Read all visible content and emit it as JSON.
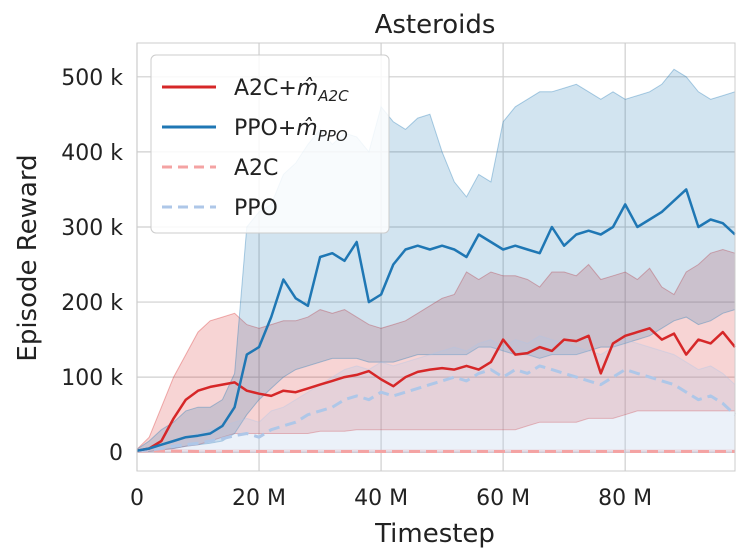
{
  "chart_data": {
    "type": "line",
    "title": "Asteroids",
    "xlabel": "Timestep",
    "ylabel": "Episode Reward",
    "xlim": [
      0,
      98
    ],
    "ylim": [
      -25,
      545
    ],
    "x_unit": "M",
    "y_unit": "k",
    "x_ticks": [
      0,
      20,
      40,
      60,
      80
    ],
    "x_tick_labels": [
      "0",
      "20 M",
      "40 M",
      "60 M",
      "80 M"
    ],
    "y_ticks": [
      0,
      100,
      200,
      300,
      400,
      500
    ],
    "y_tick_labels": [
      "0",
      "100 k",
      "200 k",
      "300 k",
      "400 k",
      "500 k"
    ],
    "grid": true,
    "legend_position": "top-left",
    "legend": [
      {
        "base": "A2C+",
        "symbol": "m̂",
        "sub": "A2C"
      },
      {
        "base": "PPO+",
        "symbol": "m̂",
        "sub": "PPO"
      },
      {
        "base": "A2C",
        "symbol": "",
        "sub": ""
      },
      {
        "base": "PPO",
        "symbol": "",
        "sub": ""
      }
    ],
    "series": [
      {
        "color": "#d62728",
        "dashed": false,
        "band_color": "#d62728",
        "band_opacity": 0.2,
        "x": [
          0,
          2,
          4,
          6,
          8,
          10,
          12,
          14,
          16,
          18,
          20,
          22,
          24,
          26,
          28,
          30,
          32,
          34,
          36,
          38,
          40,
          42,
          44,
          46,
          48,
          50,
          52,
          54,
          56,
          58,
          60,
          62,
          64,
          66,
          68,
          70,
          72,
          74,
          76,
          78,
          80,
          82,
          84,
          86,
          88,
          90,
          92,
          94,
          96,
          98
        ],
        "y": [
          2,
          5,
          15,
          45,
          70,
          82,
          87,
          90,
          93,
          82,
          78,
          75,
          82,
          80,
          85,
          90,
          95,
          100,
          103,
          108,
          97,
          88,
          100,
          107,
          110,
          112,
          110,
          115,
          110,
          120,
          150,
          130,
          132,
          140,
          135,
          150,
          148,
          155,
          105,
          145,
          155,
          160,
          165,
          150,
          158,
          130,
          150,
          145,
          160,
          140
        ],
        "lower": [
          0,
          1,
          3,
          5,
          8,
          10,
          15,
          20,
          25,
          25,
          25,
          25,
          25,
          25,
          25,
          28,
          28,
          28,
          30,
          30,
          30,
          30,
          30,
          30,
          30,
          30,
          30,
          30,
          30,
          30,
          30,
          30,
          35,
          40,
          40,
          40,
          40,
          45,
          45,
          45,
          50,
          55,
          55,
          55,
          55,
          55,
          55,
          55,
          55,
          55
        ],
        "upper": [
          4,
          20,
          60,
          100,
          130,
          160,
          175,
          180,
          185,
          170,
          165,
          170,
          175,
          175,
          180,
          190,
          185,
          190,
          180,
          170,
          165,
          170,
          175,
          185,
          195,
          205,
          210,
          240,
          230,
          240,
          235,
          235,
          230,
          220,
          240,
          240,
          235,
          250,
          230,
          235,
          240,
          230,
          245,
          220,
          210,
          240,
          250,
          265,
          270,
          265
        ]
      },
      {
        "color": "#1f77b4",
        "dashed": false,
        "band_color": "#1f77b4",
        "band_opacity": 0.2,
        "x": [
          0,
          2,
          4,
          6,
          8,
          10,
          12,
          14,
          16,
          18,
          20,
          22,
          24,
          26,
          28,
          30,
          32,
          34,
          36,
          38,
          40,
          42,
          44,
          46,
          48,
          50,
          52,
          54,
          56,
          58,
          60,
          62,
          64,
          66,
          68,
          70,
          72,
          74,
          76,
          78,
          80,
          82,
          84,
          86,
          88,
          90,
          92,
          94,
          96,
          98
        ],
        "y": [
          2,
          5,
          10,
          15,
          20,
          22,
          25,
          35,
          60,
          130,
          140,
          180,
          230,
          205,
          195,
          260,
          265,
          255,
          280,
          200,
          210,
          250,
          270,
          275,
          270,
          275,
          270,
          260,
          290,
          280,
          270,
          275,
          270,
          265,
          300,
          275,
          290,
          295,
          290,
          300,
          330,
          300,
          310,
          320,
          335,
          350,
          300,
          310,
          305,
          290
        ],
        "lower": [
          0,
          1,
          3,
          5,
          8,
          10,
          12,
          15,
          25,
          50,
          70,
          85,
          100,
          110,
          115,
          120,
          125,
          125,
          125,
          120,
          120,
          120,
          125,
          130,
          130,
          130,
          130,
          130,
          140,
          140,
          135,
          130,
          130,
          125,
          130,
          130,
          130,
          135,
          140,
          140,
          145,
          150,
          155,
          165,
          175,
          180,
          170,
          175,
          185,
          190
        ],
        "upper": [
          4,
          15,
          30,
          40,
          55,
          60,
          60,
          70,
          105,
          300,
          320,
          330,
          370,
          385,
          410,
          430,
          410,
          425,
          420,
          400,
          460,
          440,
          430,
          445,
          450,
          400,
          360,
          340,
          370,
          360,
          440,
          460,
          470,
          480,
          480,
          485,
          490,
          480,
          470,
          480,
          470,
          475,
          480,
          490,
          510,
          500,
          480,
          470,
          475,
          480
        ]
      },
      {
        "color": "#f4a3a3",
        "dashed": true,
        "band_color": "#f4a3a3",
        "band_opacity": 0.15,
        "x": [
          0,
          10,
          20,
          30,
          40,
          50,
          60,
          70,
          80,
          90,
          98
        ],
        "y": [
          2,
          1,
          1,
          1,
          1,
          1,
          1,
          1,
          1,
          1,
          1
        ],
        "lower": [
          0,
          0,
          0,
          0,
          0,
          0,
          0,
          0,
          0,
          0,
          0
        ],
        "upper": [
          4,
          3,
          3,
          3,
          3,
          3,
          3,
          3,
          3,
          3,
          3
        ]
      },
      {
        "color": "#aec7e8",
        "dashed": true,
        "band_color": "#aec7e8",
        "band_opacity": 0.25,
        "x": [
          0,
          2,
          4,
          6,
          8,
          10,
          12,
          14,
          16,
          18,
          20,
          22,
          24,
          26,
          28,
          30,
          32,
          34,
          36,
          38,
          40,
          42,
          44,
          46,
          48,
          50,
          52,
          54,
          56,
          58,
          60,
          62,
          64,
          66,
          68,
          70,
          72,
          74,
          76,
          78,
          80,
          82,
          84,
          86,
          88,
          90,
          92,
          94,
          96,
          98
        ],
        "y": [
          2,
          3,
          5,
          8,
          10,
          12,
          15,
          18,
          22,
          25,
          20,
          30,
          35,
          40,
          50,
          55,
          60,
          70,
          75,
          70,
          80,
          75,
          80,
          85,
          90,
          95,
          100,
          95,
          105,
          110,
          100,
          110,
          105,
          115,
          110,
          105,
          100,
          95,
          90,
          100,
          110,
          105,
          100,
          95,
          90,
          80,
          70,
          75,
          65,
          50
        ],
        "lower": [
          0,
          0,
          0,
          0,
          0,
          0,
          0,
          0,
          0,
          0,
          0,
          0,
          0,
          0,
          0,
          0,
          0,
          0,
          0,
          0,
          0,
          0,
          0,
          0,
          0,
          0,
          0,
          0,
          0,
          0,
          0,
          0,
          0,
          0,
          0,
          0,
          0,
          0,
          0,
          0,
          0,
          0,
          0,
          0,
          0,
          0,
          0,
          0,
          0,
          0
        ],
        "upper": [
          4,
          6,
          10,
          15,
          20,
          25,
          30,
          35,
          40,
          45,
          40,
          55,
          60,
          70,
          80,
          90,
          100,
          110,
          115,
          110,
          120,
          115,
          120,
          125,
          130,
          135,
          140,
          135,
          145,
          150,
          140,
          150,
          145,
          155,
          150,
          145,
          140,
          135,
          130,
          140,
          150,
          145,
          140,
          135,
          130,
          120,
          110,
          115,
          105,
          90
        ]
      }
    ]
  }
}
